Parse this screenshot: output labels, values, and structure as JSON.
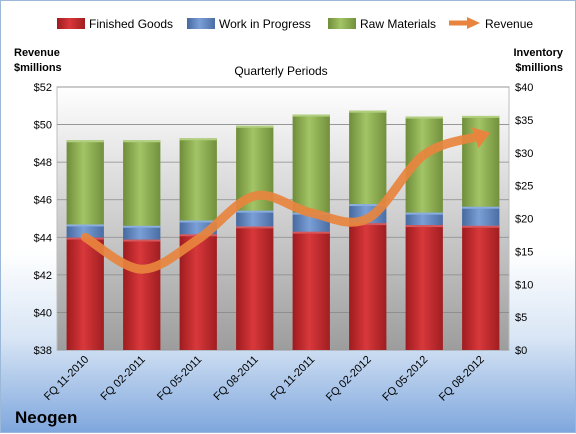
{
  "company": "Neogen",
  "colors": {
    "finished": "#c0262a",
    "wip": "#5b82c0",
    "raw": "#8cae4f",
    "revenue": "#e8843e"
  },
  "chart_data": {
    "type": "bar",
    "stacked": true,
    "title": "Quarterly Periods",
    "left_axis_title": [
      "Revenue",
      "$millions"
    ],
    "right_axis_title": [
      "Inventory",
      "$millions"
    ],
    "categories": [
      "FQ 11-2010",
      "FQ 02-2011",
      "FQ 05-2011",
      "FQ 08-2011",
      "FQ 11-2011",
      "FQ 02-2012",
      "FQ 05-2012",
      "FQ 08-2012"
    ],
    "series": [
      {
        "name": "Finished Goods",
        "axis": "right",
        "values": [
          17.1,
          16.8,
          17.6,
          18.8,
          18.0,
          19.3,
          19.0,
          18.9
        ]
      },
      {
        "name": "Work in Progress",
        "axis": "right",
        "values": [
          2.0,
          2.1,
          2.1,
          2.4,
          2.9,
          2.9,
          1.9,
          2.9
        ]
      },
      {
        "name": "Raw Materials",
        "axis": "right",
        "values": [
          12.8,
          13.0,
          12.5,
          12.9,
          14.9,
          14.2,
          14.6,
          13.8
        ]
      },
      {
        "name": "Revenue",
        "type": "line",
        "axis": "left",
        "values": [
          44.0,
          42.3,
          43.9,
          46.2,
          45.3,
          45.0,
          48.4,
          49.4
        ]
      }
    ],
    "left_ylim": [
      38,
      52
    ],
    "left_ticks": [
      "$38",
      "$40",
      "$42",
      "$44",
      "$46",
      "$48",
      "$50",
      "$52"
    ],
    "right_ylim": [
      0,
      40
    ],
    "right_ticks": [
      "$0",
      "$5",
      "$10",
      "$15",
      "$20",
      "$25",
      "$30",
      "$35",
      "$40"
    ],
    "legend": "top"
  }
}
